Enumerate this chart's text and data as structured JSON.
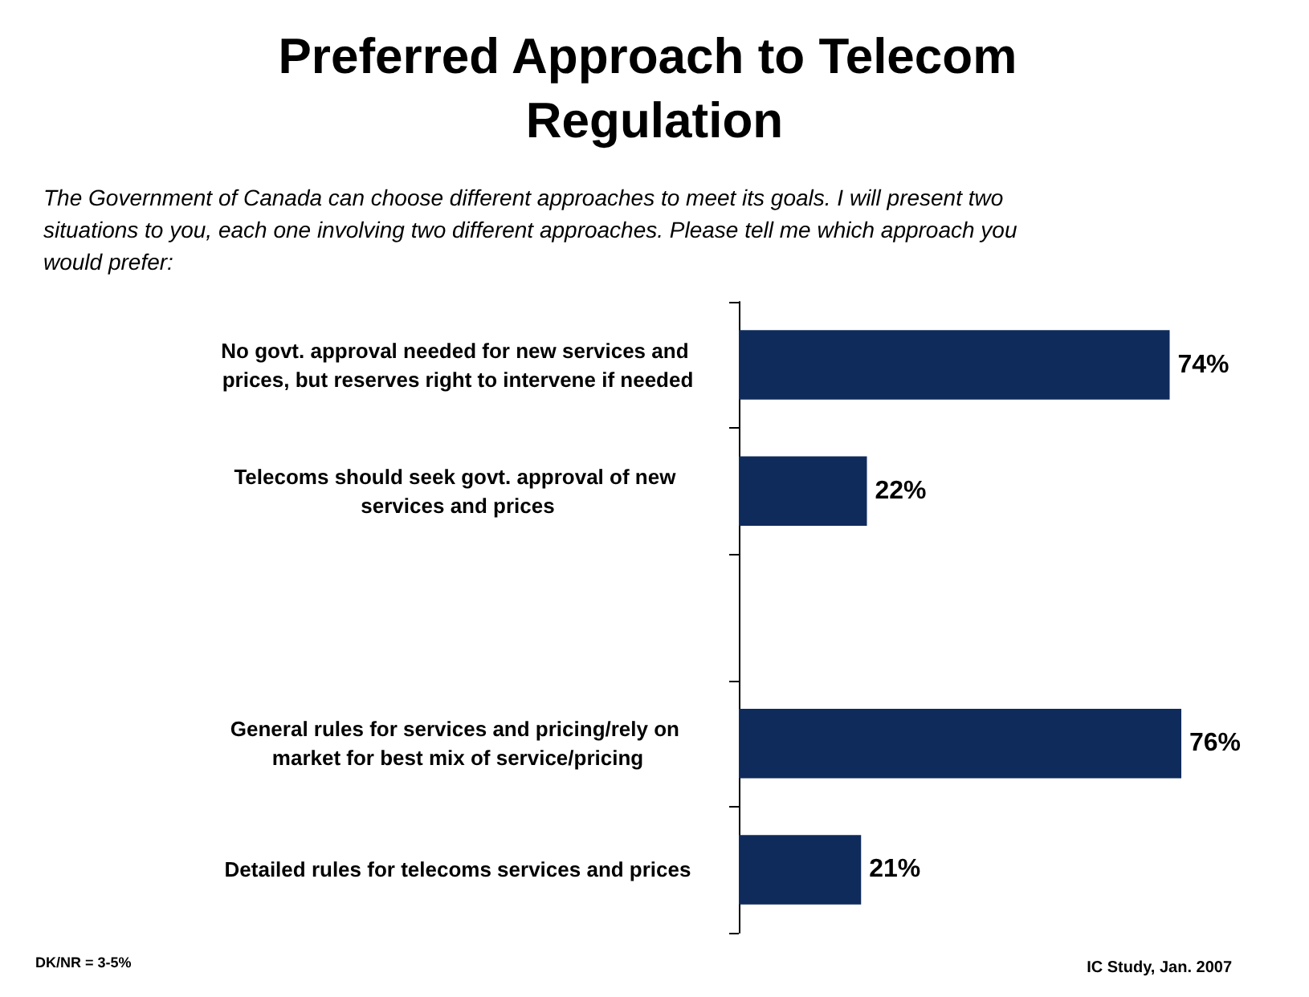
{
  "chart_data": {
    "type": "bar",
    "orientation": "horizontal",
    "title": "Preferred Approach to Telecom Regulation",
    "subtitle": "The Government of Canada can choose different approaches to meet its goals. I will present two situations to you, each one involving two different approaches. Please tell me which approach you would prefer:",
    "categories": [
      "No govt. approval needed for new services and prices, but reserves right to intervene if needed",
      "Telecoms should seek govt. approval of new services and prices",
      null,
      "General rules for services and pricing/rely on market for best mix of service/pricing",
      "Detailed rules for telecoms services and prices"
    ],
    "values": [
      74,
      22,
      null,
      76,
      21
    ],
    "value_labels": [
      "74%",
      "22%",
      null,
      "76%",
      "21%"
    ],
    "color": "#0f2b5b",
    "annotations": [
      "DK/NR = 3-5%",
      "IC Study, Jan. 2007"
    ]
  }
}
